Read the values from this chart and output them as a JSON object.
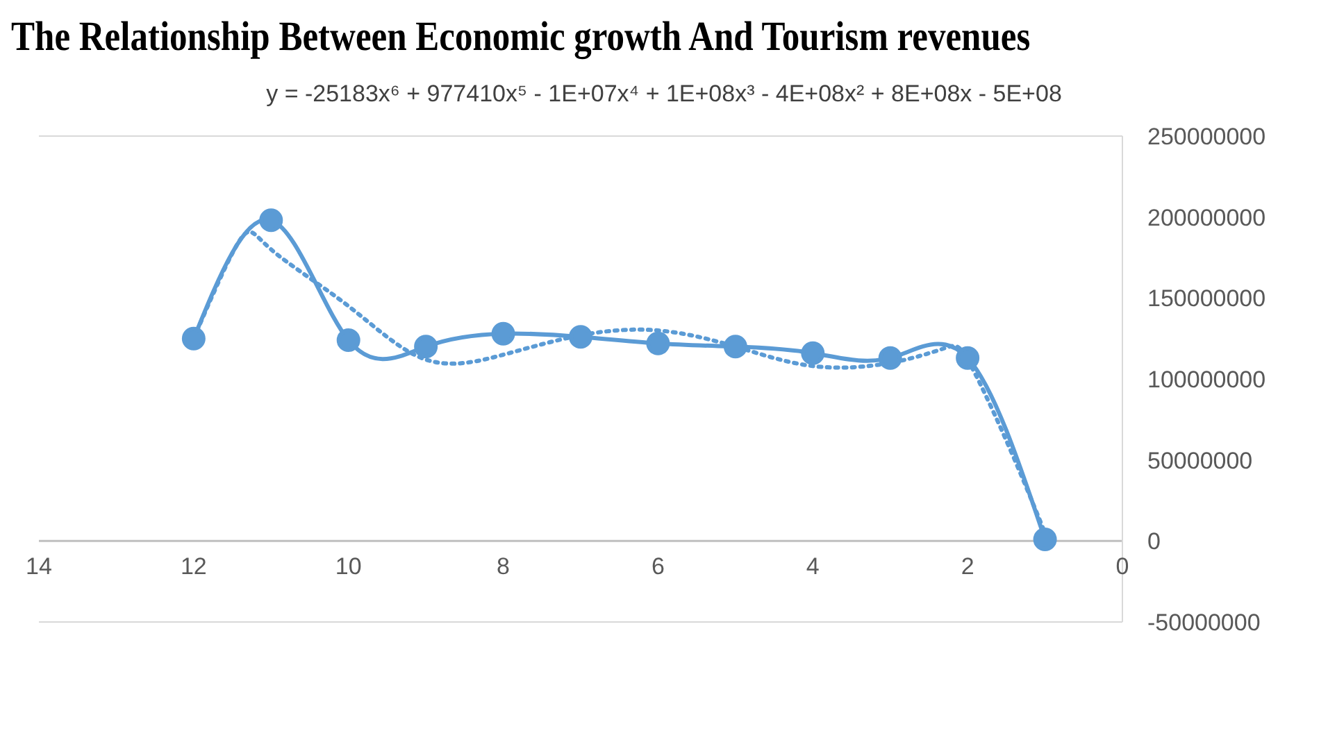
{
  "chart_data": {
    "type": "line",
    "title": "The Relationship Between Economic growth And Tourism revenues",
    "annotations": [
      "y = -25183x⁶ + 977410x⁵ - 1E+07x⁴ + 1E+08x³ - 4E+08x² + 8E+08x - 5E+08"
    ],
    "xlim": [
      14,
      0
    ],
    "xticks": [
      0,
      2,
      4,
      6,
      8,
      10,
      12,
      14
    ],
    "ylim": [
      -50000000,
      250000000
    ],
    "yticks": [
      -50000000,
      0,
      50000000,
      100000000,
      150000000,
      200000000,
      250000000
    ],
    "grid": false,
    "legend": false,
    "series": [
      {
        "color": "#5b9bd5",
        "marker": "circle",
        "line_style": "solid",
        "x": [
          12,
          11,
          10,
          9,
          8,
          7,
          6,
          5,
          4,
          3,
          2,
          1
        ],
        "values": [
          125000000,
          198000000,
          124000000,
          120000000,
          128000000,
          126000000,
          122000000,
          120000000,
          116000000,
          113000000,
          113000000,
          1000000
        ]
      },
      {
        "color": "#5b9bd5",
        "marker": "none",
        "line_style": "dotted",
        "x": [
          12,
          11.4,
          11,
          10,
          9,
          8,
          7,
          6,
          5,
          4,
          3,
          2.3,
          2,
          1.5,
          1
        ],
        "values": [
          125000000,
          186000000,
          180000000,
          145000000,
          112000000,
          115000000,
          127000000,
          130000000,
          120000000,
          108000000,
          110000000,
          119000000,
          112000000,
          62000000,
          5000000
        ]
      }
    ]
  }
}
